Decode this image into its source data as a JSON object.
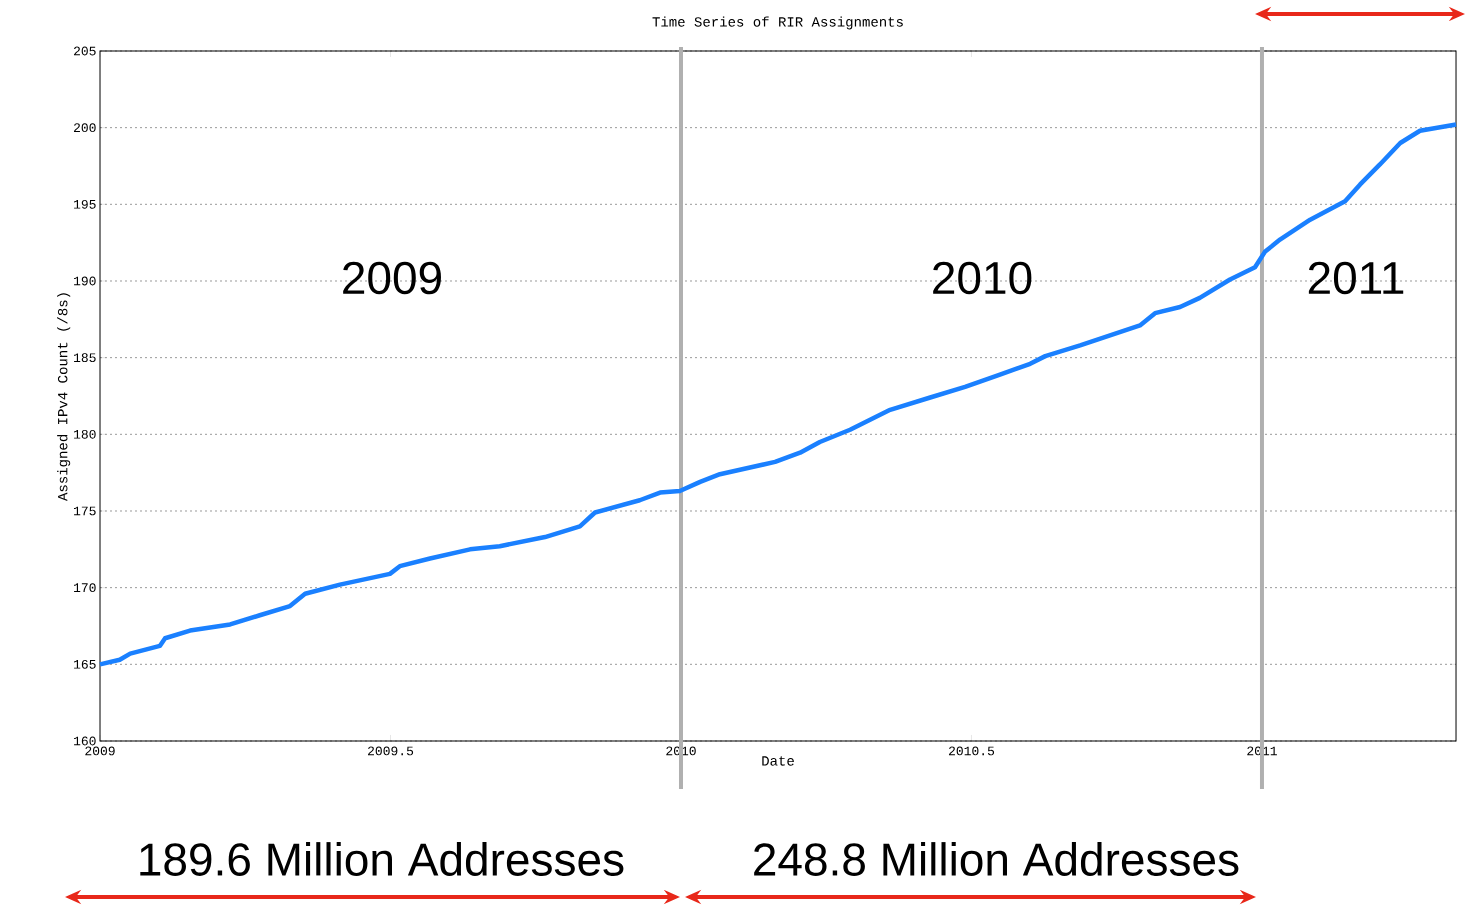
{
  "chart_data": {
    "type": "line",
    "title": "Time Series of RIR Assignments",
    "xlabel": "Date",
    "ylabel": "Assigned IPv4 Count (/8s)",
    "x": [
      2009.0,
      2009.034,
      2009.052,
      2009.103,
      2009.112,
      2009.155,
      2009.224,
      2009.275,
      2009.327,
      2009.353,
      2009.413,
      2009.499,
      2009.516,
      2009.568,
      2009.637,
      2009.688,
      2009.766,
      2009.826,
      2009.852,
      2009.929,
      2009.964,
      2009.998,
      2010.033,
      2010.067,
      2010.162,
      2010.205,
      2010.239,
      2010.291,
      2010.36,
      2010.429,
      2010.489,
      2010.549,
      2010.601,
      2010.627,
      2010.687,
      2010.79,
      2010.816,
      2010.859,
      2010.893,
      2010.945,
      2010.988,
      2011.005,
      2011.031,
      2011.083,
      2011.143,
      2011.169,
      2011.203,
      2011.238,
      2011.272,
      2011.334
    ],
    "series": [
      {
        "color": "#1a80ff",
        "values": [
          165.0,
          165.3,
          165.7,
          166.2,
          166.7,
          167.2,
          167.6,
          168.2,
          168.8,
          169.6,
          170.2,
          170.9,
          171.4,
          171.9,
          172.5,
          172.7,
          173.3,
          174.0,
          174.9,
          175.7,
          176.2,
          176.3,
          176.9,
          177.4,
          178.2,
          178.8,
          179.5,
          180.3,
          181.6,
          182.4,
          183.1,
          183.9,
          184.6,
          185.1,
          185.8,
          187.1,
          187.9,
          188.3,
          188.9,
          190.1,
          190.9,
          191.9,
          192.7,
          194.0,
          195.2,
          196.3,
          197.6,
          199.0,
          199.8,
          200.2
        ]
      }
    ],
    "xlim": [
      2009,
      2011.334
    ],
    "ylim": [
      160,
      205
    ],
    "xticks": [
      2009,
      2009.5,
      2010,
      2010.5,
      2011
    ],
    "yticks": [
      160,
      165,
      170,
      175,
      180,
      185,
      190,
      195,
      200,
      205
    ],
    "grid": "y",
    "ref_lines": [
      {
        "axis": "x",
        "value": 2010,
        "color": "#b0b0b0"
      },
      {
        "axis": "x",
        "value": 2011,
        "color": "#b0b0b0"
      }
    ],
    "annotations": [
      "2009",
      "2010",
      "2011",
      "189.6 Million Addresses",
      "248.8 Million Addresses"
    ]
  }
}
